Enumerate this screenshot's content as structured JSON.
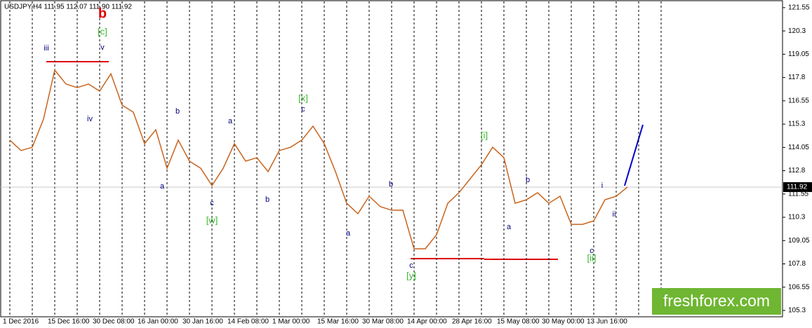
{
  "chart_data": {
    "type": "line",
    "title": "USDJPY,H4  111.95 112.07 111.90 111.92",
    "categories": [
      "1 Dec 2016",
      null,
      null,
      null,
      "15 Dec 16:00",
      null,
      null,
      null,
      "30 Dec 08:00",
      null,
      null,
      null,
      "16 Jan 00:00",
      null,
      null,
      null,
      "30 Jan 16:00",
      null,
      null,
      null,
      "14 Feb 08:00",
      null,
      null,
      null,
      "1 Mar 00:00",
      null,
      null,
      null,
      "15 Mar 16:00",
      null,
      null,
      null,
      "30 Mar 08:00",
      null,
      null,
      null,
      "14 Apr 00:00",
      null,
      null,
      null,
      "28 Apr 16:00",
      null,
      null,
      null,
      "15 May 08:00",
      null,
      null,
      null,
      "30 May 00:00",
      null,
      null,
      null,
      "13 Jun 16:00",
      null,
      null,
      null
    ],
    "values": [
      114.44,
      113.88,
      114.06,
      115.57,
      118.2,
      117.45,
      117.26,
      117.45,
      117.07,
      118.0,
      116.32,
      115.94,
      114.25,
      115.0,
      112.93,
      114.44,
      113.31,
      112.93,
      112.0,
      112.93,
      114.25,
      113.31,
      113.5,
      112.75,
      113.88,
      114.06,
      114.44,
      115.19,
      114.25,
      112.75,
      111.05,
      110.49,
      111.43,
      110.87,
      110.68,
      110.68,
      108.61,
      108.61,
      109.36,
      111.05,
      111.62,
      112.37,
      113.12,
      114.06,
      113.5,
      111.05,
      111.24,
      111.62,
      111.05,
      111.43,
      109.92,
      109.92,
      110.11,
      111.24,
      111.43,
      111.92
    ],
    "color": "#c8641e",
    "ylim": [
      104.96,
      121.96
    ],
    "yticks": [
      121.55,
      120.3,
      119.05,
      117.8,
      116.55,
      115.3,
      114.05,
      112.8,
      111.55,
      110.3,
      109.05,
      107.8,
      106.55,
      105.3
    ],
    "last_price": 111.92,
    "annotations": [
      "b",
      "[c]",
      "iii",
      "v",
      "iv",
      "b",
      "a",
      "a",
      "c",
      "[w]",
      "b",
      "[x]",
      "c",
      "a",
      "b",
      "c",
      "[y]",
      "[i]",
      "a",
      "b",
      "c",
      "[ii]",
      "i",
      "ii"
    ],
    "watermark": "freshforex.com"
  }
}
